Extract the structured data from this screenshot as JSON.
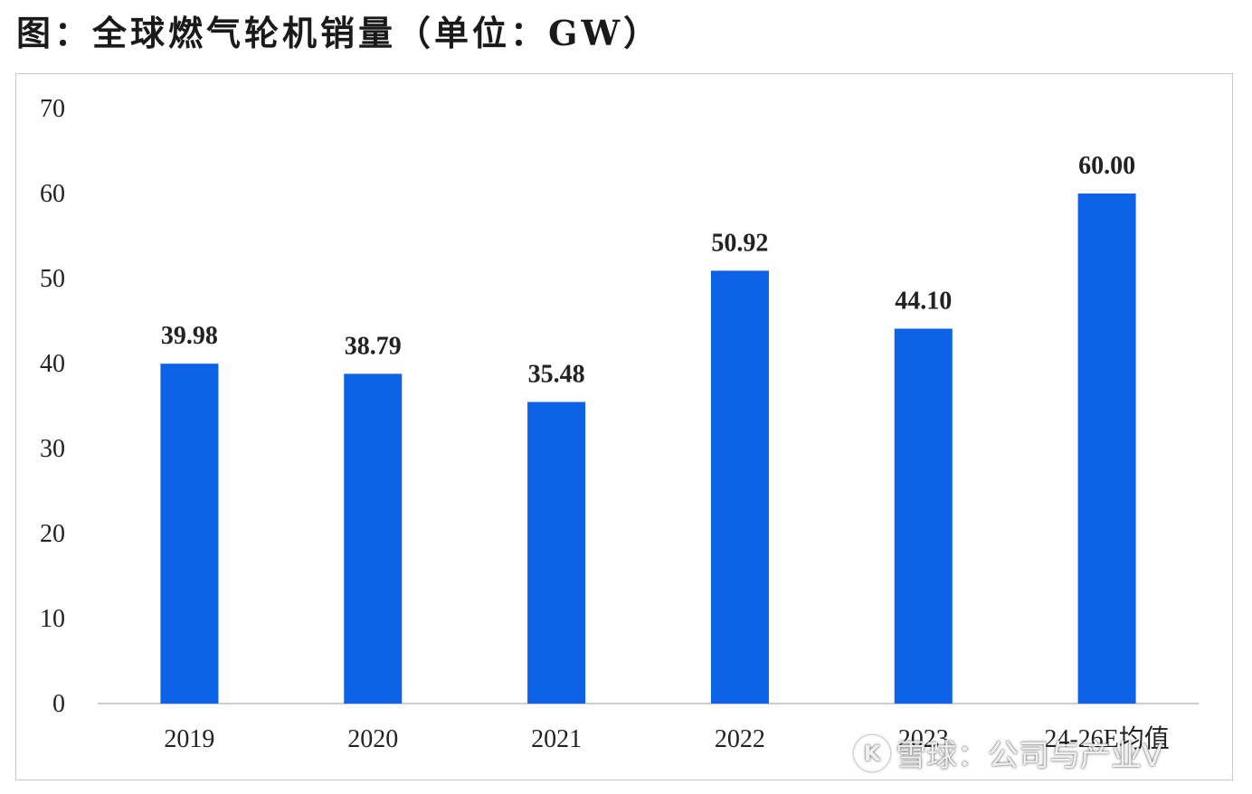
{
  "title": "图：全球燃气轮机销量（单位：GW）",
  "watermark": {
    "logo_glyph": "K",
    "text": "雪球：公司与产业V"
  },
  "colors": {
    "bar": "#0d62e6",
    "axis": "#bdbdbd",
    "text": "#222222"
  },
  "chart_data": {
    "type": "bar",
    "title": "全球燃气轮机销量（单位：GW）",
    "xlabel": "",
    "ylabel": "GW",
    "categories": [
      "2019",
      "2020",
      "2021",
      "2022",
      "2023",
      "24-26E均值"
    ],
    "values": [
      39.98,
      38.79,
      35.48,
      50.92,
      44.1,
      60.0
    ],
    "data_labels": [
      "39.98",
      "38.79",
      "35.48",
      "50.92",
      "44.10",
      "60.00"
    ],
    "y_ticks": [
      "0",
      "10",
      "20",
      "30",
      "40",
      "50",
      "60",
      "70"
    ],
    "ylim": [
      0,
      70
    ],
    "grid": false,
    "legend": "none"
  }
}
